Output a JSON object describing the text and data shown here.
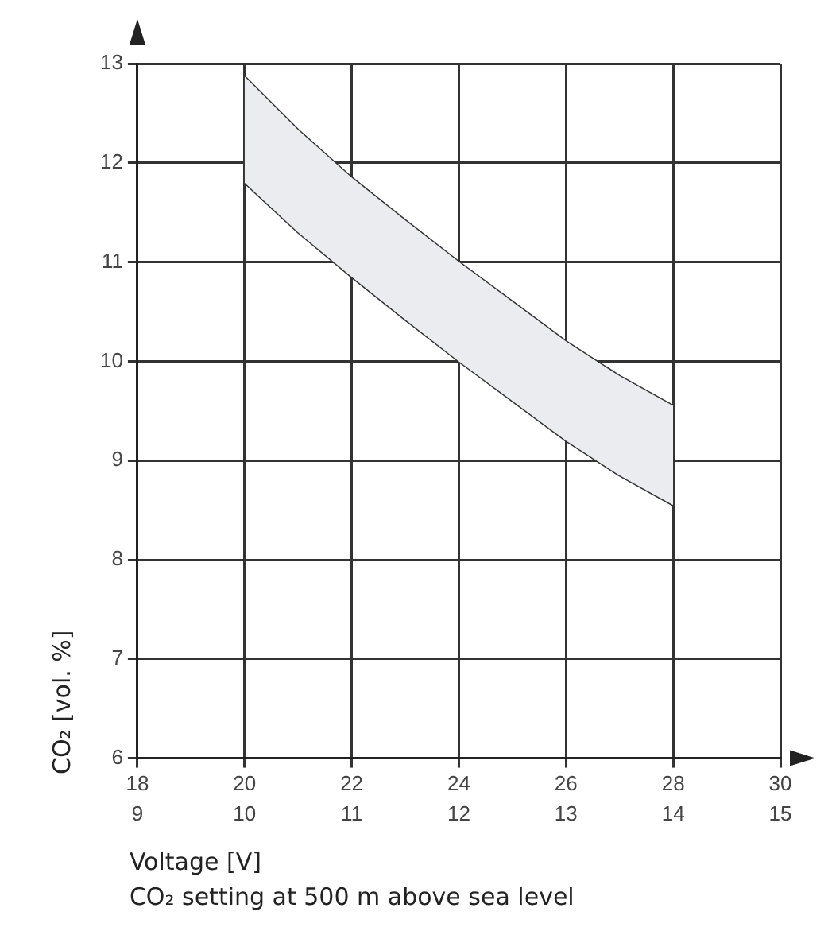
{
  "chart_data": {
    "type": "line",
    "xlabel": "Voltage [V]",
    "ylabel": "CO₂ [vol. %]",
    "annotations": [
      "CO₂ setting at 500 m above sea level"
    ],
    "xlim": [
      18,
      30
    ],
    "ylim": [
      6,
      13
    ],
    "xticks": [
      18,
      20,
      22,
      24,
      26,
      28,
      30
    ],
    "x2lim": [
      9,
      15
    ],
    "x2ticks": [
      9,
      10,
      11,
      12,
      13,
      14,
      15
    ],
    "yticks": [
      6,
      7,
      8,
      9,
      10,
      11,
      12,
      13
    ],
    "grid": true,
    "marker": "none",
    "line_style": "solid",
    "legend": false,
    "series": [
      {
        "color": "#333333",
        "x": [
          20,
          21,
          22,
          23,
          24,
          25,
          26,
          27,
          28
        ],
        "values": [
          12.87,
          12.33,
          11.85,
          11.42,
          11.0,
          10.6,
          10.2,
          9.85,
          9.55
        ],
        "upper": [
          12.87,
          12.33,
          11.85,
          11.42,
          11.0,
          10.6,
          10.2,
          9.85,
          9.55
        ],
        "lower": [
          11.8,
          11.3,
          10.85,
          10.42,
          10.0,
          9.6,
          9.2,
          8.85,
          8.55
        ]
      },
      {
        "color": "#333333",
        "x": [
          20,
          21,
          22,
          23,
          24,
          25,
          26,
          27,
          28
        ],
        "values": [
          11.8,
          11.3,
          10.85,
          10.42,
          10.0,
          9.6,
          9.2,
          8.85,
          8.55
        ]
      }
    ]
  }
}
